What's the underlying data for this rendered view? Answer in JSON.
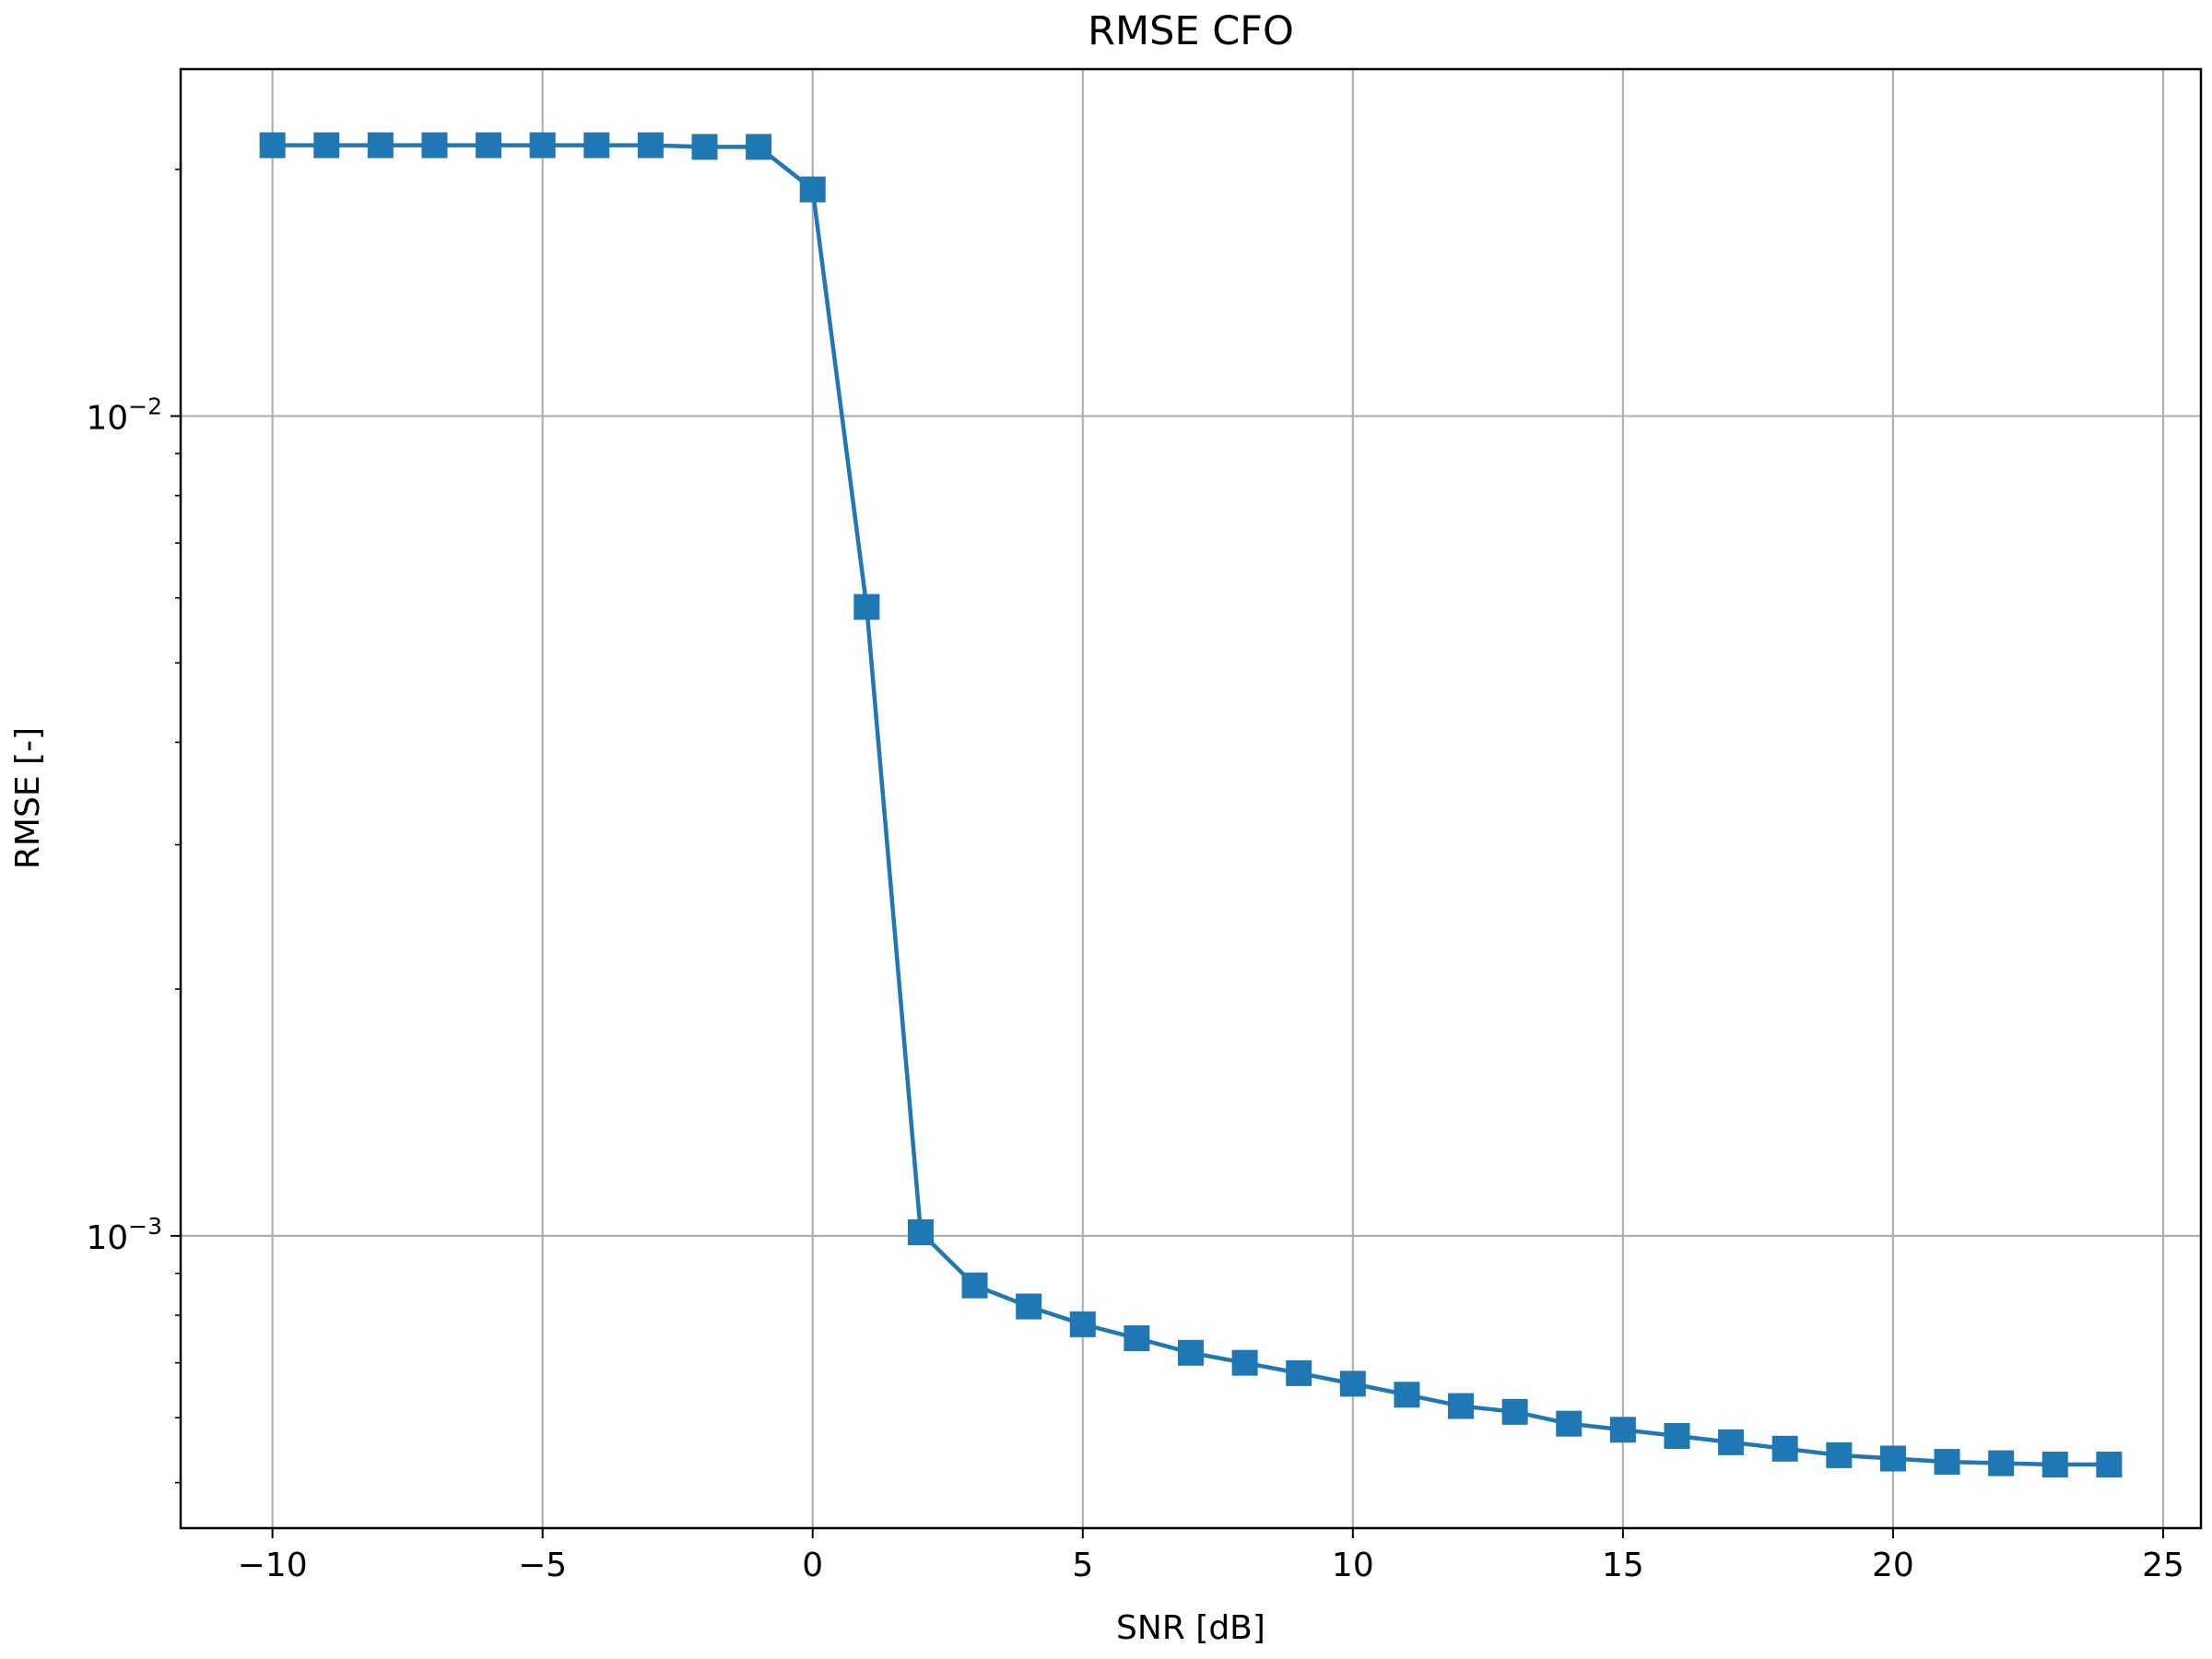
{
  "chart_data": {
    "type": "line",
    "title": "RMSE CFO",
    "xlabel": "SNR [dB]",
    "ylabel": "RMSE [-]",
    "xlim": [
      -11.7,
      25.7
    ],
    "ylim": [
      0.00044,
      0.0265
    ],
    "yscale": "log",
    "grid": true,
    "x_ticks": [
      -10,
      -5,
      0,
      5,
      10,
      15,
      20,
      25
    ],
    "x_tick_labels": [
      "−10",
      "−5",
      "0",
      "5",
      "10",
      "15",
      "20",
      "25"
    ],
    "y_ticks": [
      0.001,
      0.01
    ],
    "y_tick_labels": [
      {
        "base": "10",
        "exp": "−3"
      },
      {
        "base": "10",
        "exp": "−2"
      }
    ],
    "series": [
      {
        "color": "#1f77b4",
        "marker": "square",
        "x": [
          -10,
          -9,
          -8,
          -7,
          -6,
          -5,
          -4,
          -3,
          -2,
          -1,
          0,
          1,
          2,
          3,
          4,
          5,
          6,
          7,
          8,
          9,
          10,
          11,
          12,
          13,
          14,
          15,
          16,
          17,
          18,
          19,
          20,
          21,
          22,
          23,
          24
        ],
        "values": [
          0.0214,
          0.0214,
          0.0214,
          0.0214,
          0.0214,
          0.0214,
          0.0214,
          0.0214,
          0.0213,
          0.0213,
          0.0189,
          0.00585,
          0.00101,
          0.00087,
          0.00082,
          0.00078,
          0.00075,
          0.00072,
          0.0007,
          0.00068,
          0.00066,
          0.00064,
          0.00062,
          0.00061,
          0.00059,
          0.00058,
          0.00057,
          0.00056,
          0.00055,
          0.00054,
          0.000535,
          0.00053,
          0.000528,
          0.000526,
          0.000526
        ]
      }
    ]
  }
}
